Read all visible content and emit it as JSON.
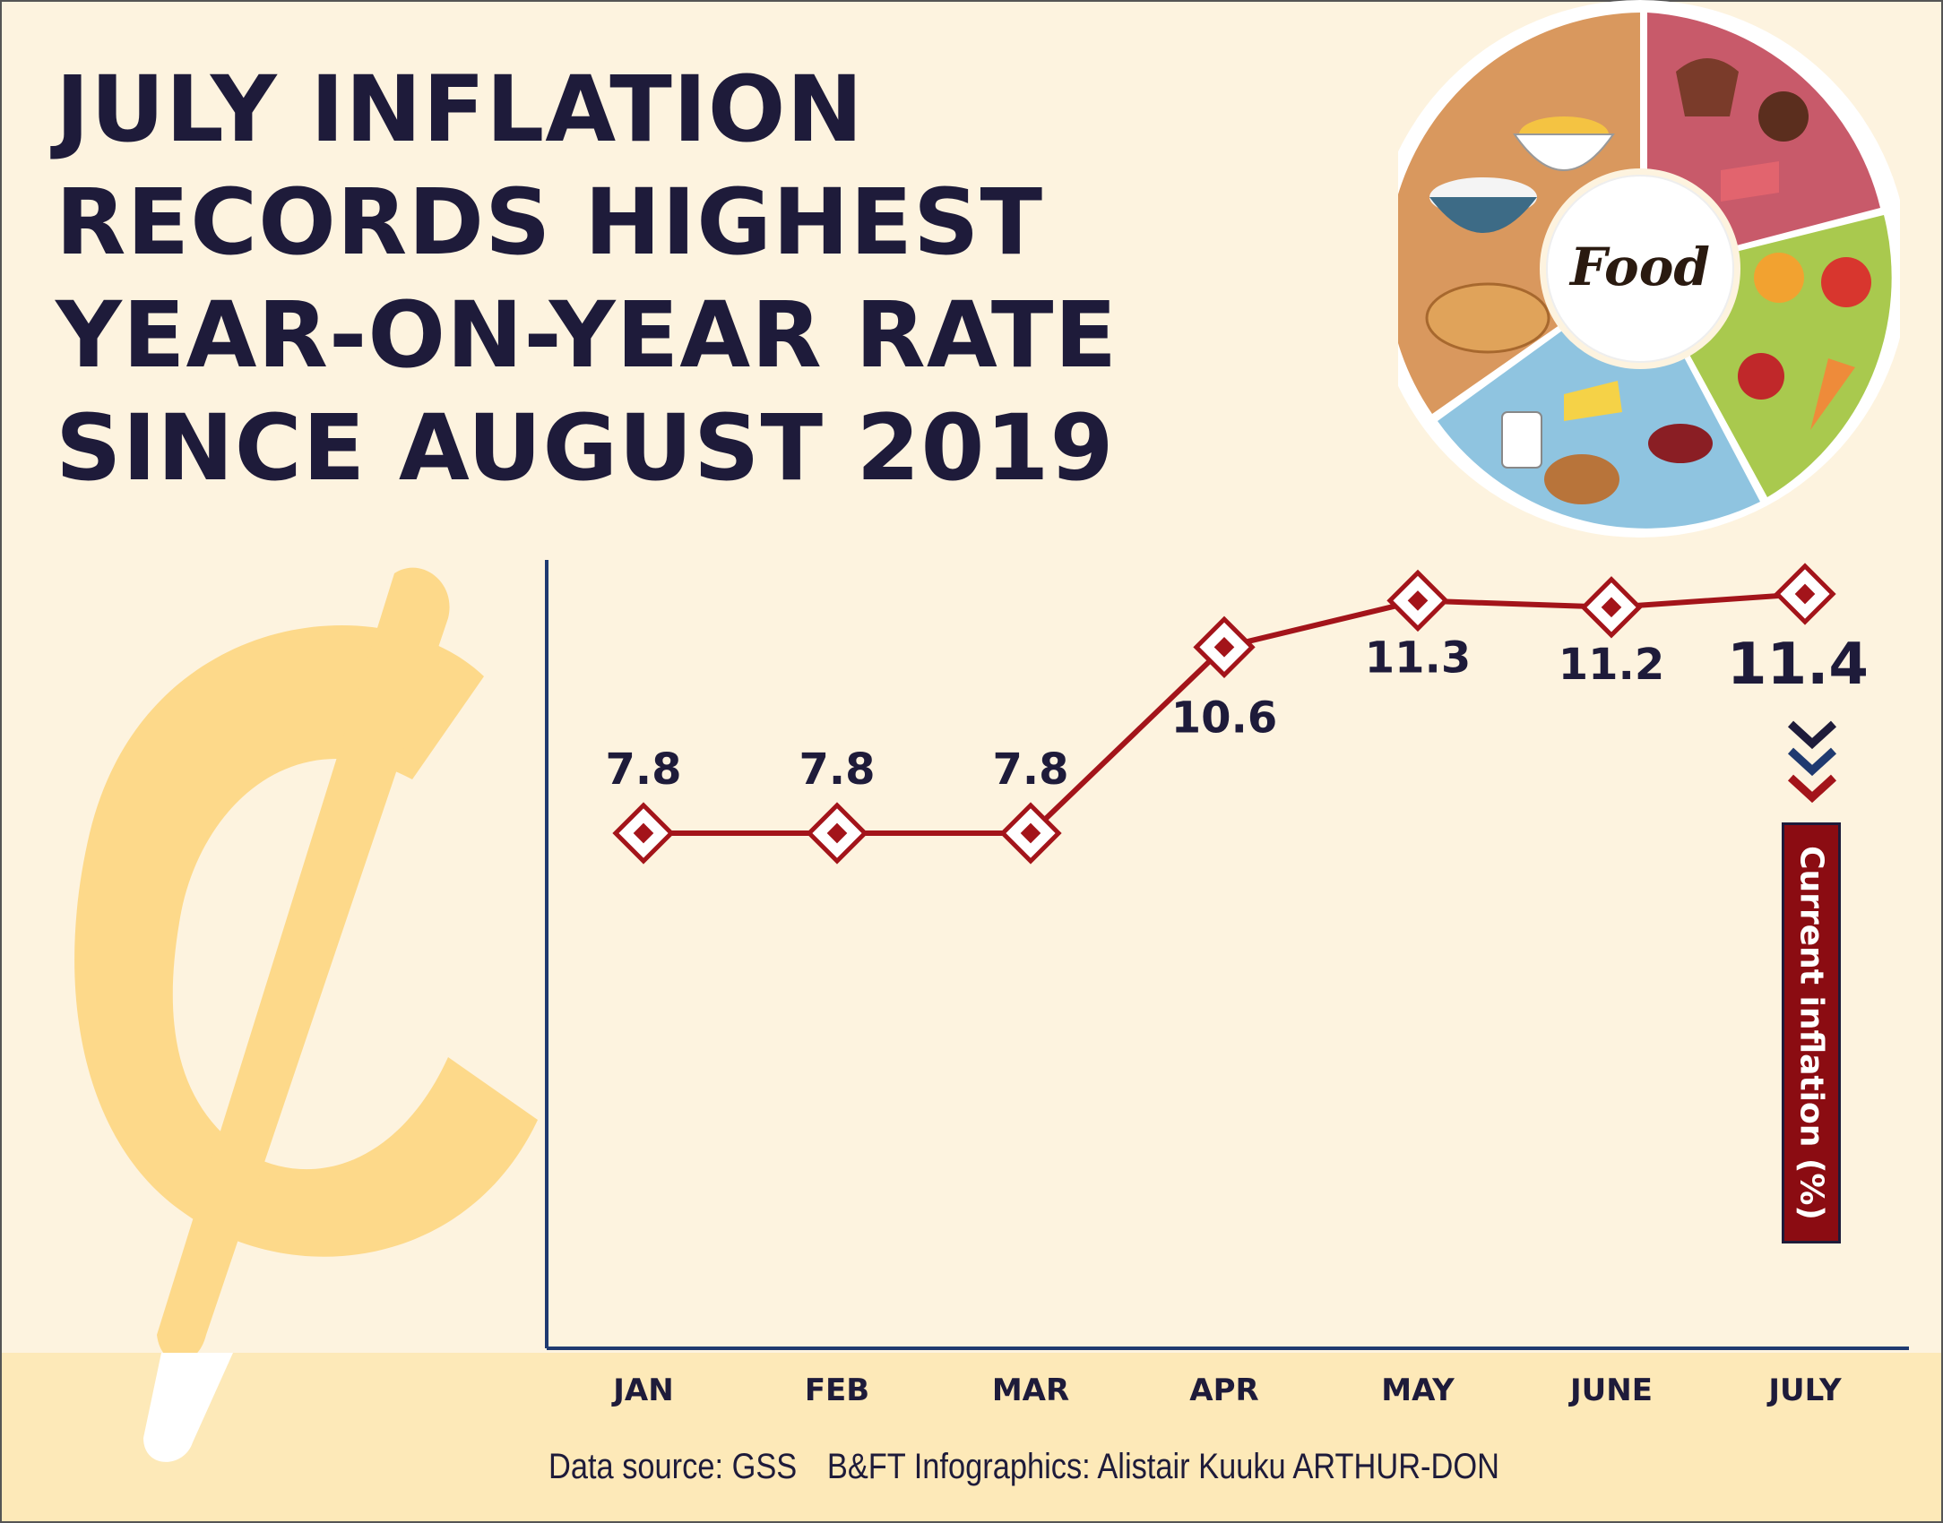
{
  "title_lines": [
    "JULY INFLATION",
    "RECORDS HIGHEST",
    "YEAR-ON-YEAR RATE",
    "SINCE AUGUST 2019"
  ],
  "food_wheel": {
    "center_label": "Food",
    "segment_colors": [
      "#d9985e",
      "#c85a6a",
      "#a9c94e",
      "#8fc4e0"
    ]
  },
  "chart_data": {
    "type": "line",
    "title": "JULY INFLATION RECORDS HIGHEST YEAR-ON-YEAR RATE SINCE AUGUST 2019",
    "categories": [
      "JAN",
      "FEB",
      "MAR",
      "APR",
      "MAY",
      "JUNE",
      "JULY"
    ],
    "series": [
      {
        "values": [
          7.8,
          7.8,
          7.8,
          10.6,
          11.3,
          11.2,
          11.4
        ],
        "color": "#a3141a"
      }
    ],
    "data_labels": [
      "7.8",
      "7.8",
      "7.8",
      "10.6",
      "11.3",
      "11.2",
      "11.4"
    ],
    "highlight_label": "Current inflation (%)",
    "grid": false,
    "marker": "diamond"
  },
  "footer": {
    "source": "Data source: GSS",
    "credit": "B&FT Infographics: Alistair Kuuku ARTHUR-DON"
  },
  "colors": {
    "background": "#fdf3df",
    "band": "#fde9b8",
    "cedi": "#fdd98a",
    "line": "#a3141a",
    "text": "#1e1b3a",
    "highlight_box": "#8b0c12"
  }
}
